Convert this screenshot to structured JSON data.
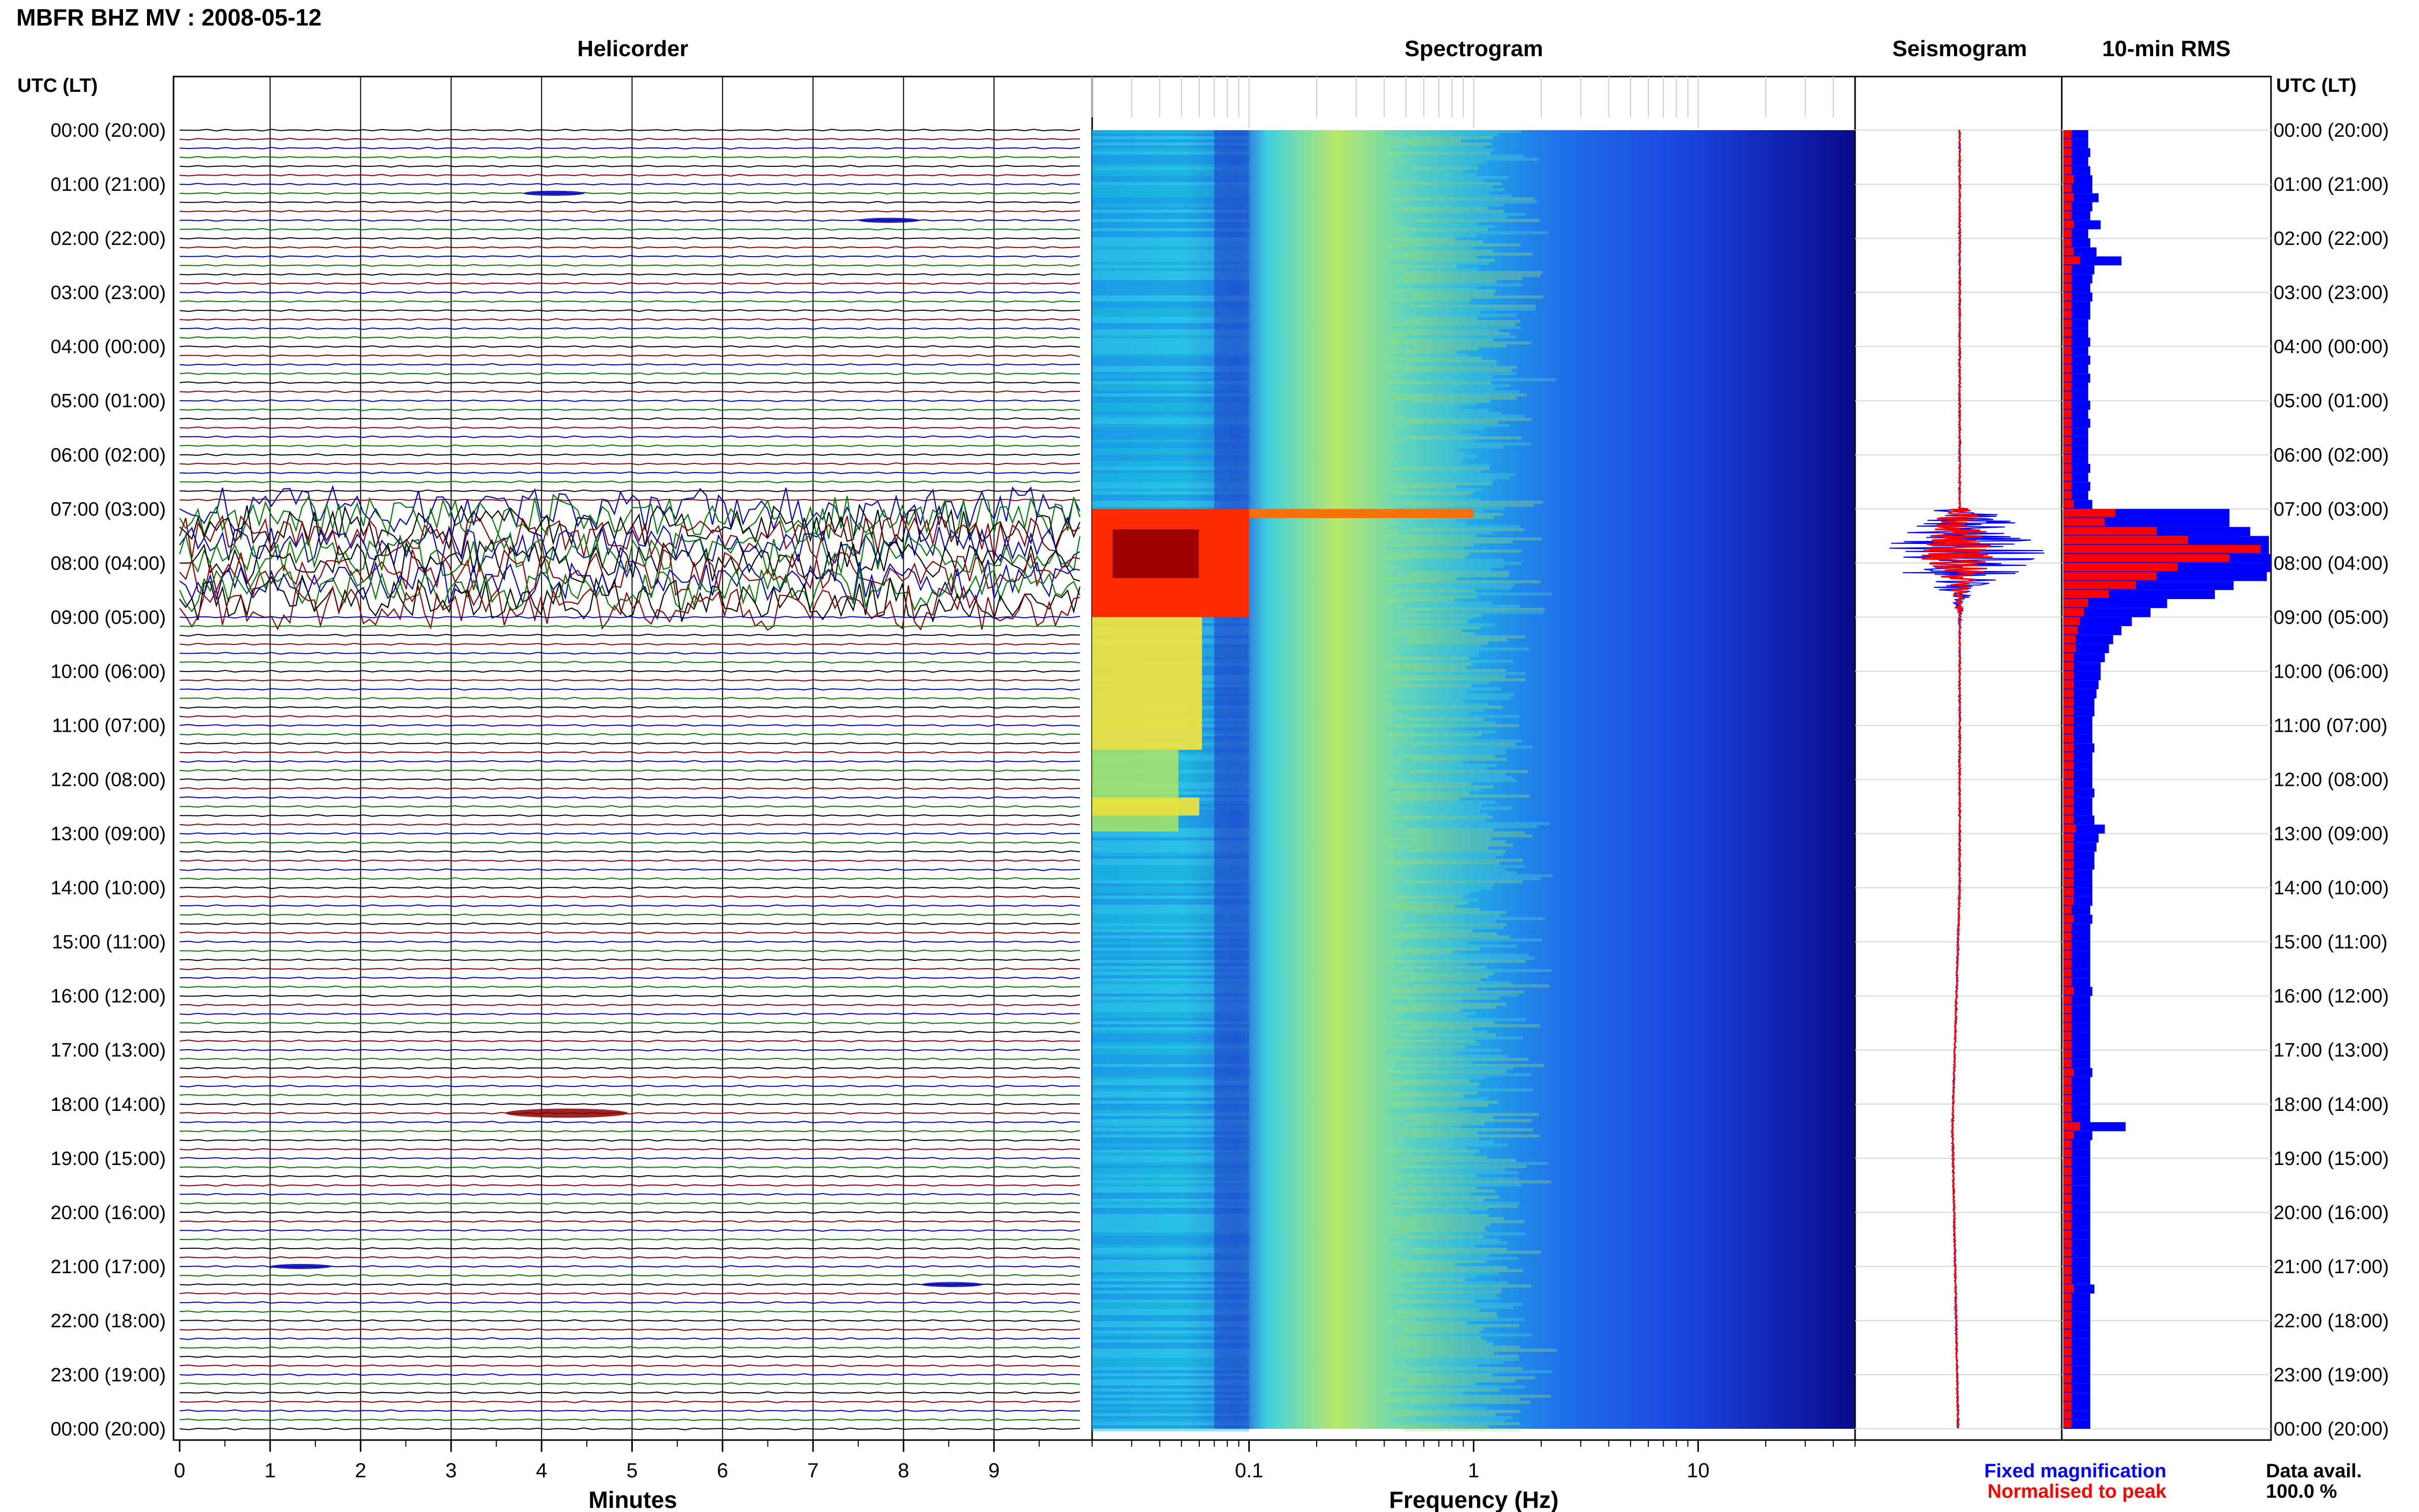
{
  "header": {
    "station_title": "MBFR BHZ MV : 2008-05-12",
    "time_axis_label": "UTC (LT)",
    "helicorder_title": "Helicorder",
    "spectrogram_title": "Spectrogram",
    "seismogram_title": "Seismogram",
    "rms_title": "10-min RMS"
  },
  "time_labels": [
    "00:00 (20:00)",
    "01:00 (21:00)",
    "02:00 (22:00)",
    "03:00 (23:00)",
    "04:00 (00:00)",
    "05:00 (01:00)",
    "06:00 (02:00)",
    "07:00 (03:00)",
    "08:00 (04:00)",
    "09:00 (05:00)",
    "10:00 (06:00)",
    "11:00 (07:00)",
    "12:00 (08:00)",
    "13:00 (09:00)",
    "14:00 (10:00)",
    "15:00 (11:00)",
    "16:00 (12:00)",
    "17:00 (13:00)",
    "18:00 (14:00)",
    "19:00 (15:00)",
    "20:00 (16:00)",
    "21:00 (17:00)",
    "22:00 (18:00)",
    "23:00 (19:00)",
    "00:00 (20:00)"
  ],
  "footer": {
    "minutes_label": "Minutes",
    "frequency_label": "Frequency (Hz)",
    "legend_fixed": "Fixed magnification",
    "legend_normalised": "Normalised to peak",
    "data_avail_label": "Data avail.",
    "data_avail_value": "100.0 %"
  },
  "colors": {
    "trace_cycle": [
      "#000000",
      "#8b0000",
      "#0000b4",
      "#007a00"
    ],
    "fixed_magnification": "#0000ff",
    "normalised_to_peak": "#ff0000",
    "spectrogram_colormap": "jet"
  },
  "chart_data": [
    {
      "type": "line",
      "title": "Helicorder",
      "xlabel": "Minutes",
      "x_ticks": [
        "0",
        "1",
        "2",
        "3",
        "4",
        "5",
        "6",
        "7",
        "8",
        "9"
      ],
      "xlim": [
        0,
        10
      ],
      "lines_per_hour": 6,
      "minutes_per_line": 10,
      "time_range_utc": [
        "00:00",
        "24:00"
      ],
      "high_amplitude_interval_utc": [
        "07:00",
        "09:00"
      ],
      "events": [
        {
          "time_utc": "01:10",
          "minute": 3.8,
          "note": "short event"
        },
        {
          "time_utc": "01:40",
          "minute": 7.5,
          "note": "event"
        },
        {
          "time_utc": "18:10",
          "minute": 3.6,
          "note": "large local event"
        },
        {
          "time_utc": "21:00",
          "minute": 1.0,
          "note": "event"
        },
        {
          "time_utc": "21:20",
          "minute": 8.2,
          "note": "event"
        }
      ]
    },
    {
      "type": "heatmap",
      "title": "Spectrogram",
      "xlabel": "Frequency (Hz)",
      "x_scale": "log",
      "x_ticks": [
        "0.1",
        "1",
        "10"
      ],
      "xlim": [
        0.02,
        50
      ],
      "time_range_utc": [
        "00:00",
        "24:00"
      ],
      "colormap": "jet",
      "features": [
        {
          "time_utc": [
            "07:00",
            "09:00"
          ],
          "freq_hz": [
            0.02,
            0.1
          ],
          "level": "very high"
        },
        {
          "time_utc": [
            "07:00",
            "07:10"
          ],
          "freq_hz": [
            0.1,
            1.0
          ],
          "level": "high"
        },
        {
          "time_utc": [
            "12:20",
            "12:40"
          ],
          "freq_hz": [
            0.02,
            0.06
          ],
          "level": "elevated"
        }
      ]
    },
    {
      "type": "line",
      "title": "Seismogram",
      "series": [
        {
          "name": "Fixed magnification",
          "color": "#0000ff"
        },
        {
          "name": "Normalised to peak",
          "color": "#ff0000"
        }
      ],
      "peak_time_utc": "07:50"
    },
    {
      "type": "bar",
      "title": "10-min RMS",
      "orientation": "horizontal",
      "series": [
        {
          "name": "Fixed magnification",
          "color": "#0000ff",
          "values": [
            0.12,
            0.12,
            0.13,
            0.12,
            0.13,
            0.14,
            0.14,
            0.17,
            0.14,
            0.13,
            0.18,
            0.12,
            0.13,
            0.16,
            0.28,
            0.15,
            0.14,
            0.13,
            0.14,
            0.13,
            0.13,
            0.12,
            0.12,
            0.13,
            0.12,
            0.13,
            0.12,
            0.13,
            0.12,
            0.12,
            0.13,
            0.12,
            0.13,
            0.12,
            0.12,
            0.12,
            0.12,
            0.13,
            0.12,
            0.13,
            0.12,
            0.14,
            0.8,
            0.8,
            0.9,
            0.99,
            0.99,
            1.0,
            1.0,
            0.98,
            0.82,
            0.73,
            0.5,
            0.42,
            0.33,
            0.28,
            0.24,
            0.22,
            0.2,
            0.18,
            0.18,
            0.17,
            0.16,
            0.15,
            0.15,
            0.14,
            0.14,
            0.14,
            0.15,
            0.14,
            0.14,
            0.14,
            0.14,
            0.15,
            0.14,
            0.14,
            0.15,
            0.2,
            0.17,
            0.16,
            0.15,
            0.15,
            0.14,
            0.14,
            0.14,
            0.14,
            0.13,
            0.14,
            0.13,
            0.13,
            0.13,
            0.13,
            0.13,
            0.13,
            0.13,
            0.14,
            0.13,
            0.13,
            0.13,
            0.13,
            0.13,
            0.13,
            0.13,
            0.13,
            0.14,
            0.13,
            0.13,
            0.13,
            0.13,
            0.13,
            0.3,
            0.14,
            0.13,
            0.13,
            0.13,
            0.13,
            0.13,
            0.13,
            0.13,
            0.13,
            0.13,
            0.13,
            0.13,
            0.13,
            0.13,
            0.13,
            0.13,
            0.13,
            0.15,
            0.13,
            0.13,
            0.13,
            0.13,
            0.13,
            0.13,
            0.13,
            0.13,
            0.13,
            0.13,
            0.13,
            0.13,
            0.13,
            0.13,
            0.13
          ]
        },
        {
          "name": "Normalised to peak",
          "color": "#ff0000",
          "values": [
            0.04,
            0.04,
            0.04,
            0.04,
            0.04,
            0.05,
            0.04,
            0.05,
            0.04,
            0.04,
            0.05,
            0.04,
            0.04,
            0.05,
            0.08,
            0.04,
            0.04,
            0.04,
            0.04,
            0.04,
            0.04,
            0.04,
            0.04,
            0.04,
            0.04,
            0.04,
            0.04,
            0.04,
            0.04,
            0.04,
            0.04,
            0.04,
            0.04,
            0.04,
            0.04,
            0.04,
            0.04,
            0.04,
            0.04,
            0.04,
            0.04,
            0.05,
            0.25,
            0.2,
            0.45,
            0.6,
            0.95,
            0.8,
            0.55,
            0.45,
            0.35,
            0.22,
            0.12,
            0.1,
            0.08,
            0.07,
            0.06,
            0.06,
            0.05,
            0.05,
            0.05,
            0.05,
            0.05,
            0.05,
            0.05,
            0.05,
            0.05,
            0.05,
            0.05,
            0.05,
            0.05,
            0.05,
            0.05,
            0.05,
            0.05,
            0.05,
            0.05,
            0.06,
            0.05,
            0.05,
            0.05,
            0.05,
            0.05,
            0.05,
            0.05,
            0.05,
            0.04,
            0.05,
            0.04,
            0.04,
            0.04,
            0.04,
            0.04,
            0.04,
            0.04,
            0.05,
            0.04,
            0.04,
            0.04,
            0.04,
            0.04,
            0.04,
            0.04,
            0.04,
            0.05,
            0.04,
            0.04,
            0.04,
            0.04,
            0.04,
            0.08,
            0.05,
            0.04,
            0.04,
            0.04,
            0.04,
            0.04,
            0.04,
            0.04,
            0.04,
            0.04,
            0.04,
            0.04,
            0.04,
            0.04,
            0.04,
            0.04,
            0.04,
            0.05,
            0.04,
            0.04,
            0.04,
            0.04,
            0.04,
            0.04,
            0.04,
            0.04,
            0.04,
            0.04,
            0.04,
            0.04,
            0.04,
            0.04,
            0.04
          ]
        }
      ]
    }
  ]
}
